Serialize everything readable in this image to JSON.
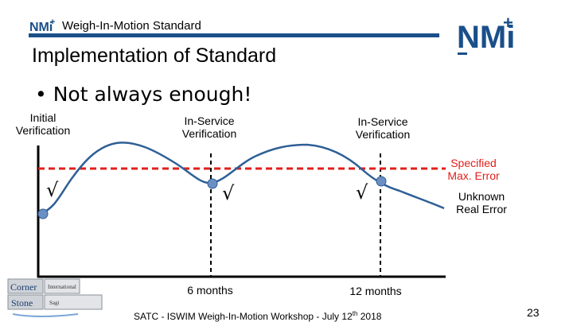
{
  "header": {
    "title": "Weigh-In-Motion Standard",
    "logo_text": "NMi",
    "logo_plus": "+"
  },
  "slide": {
    "subtitle": "Implementation of Standard",
    "bullet": "• Not always enough!"
  },
  "labels": {
    "initial_verification": "Initial\nVerification",
    "in_service_1": "In-Service\nVerification",
    "in_service_2": "In-Service\nVerification",
    "specified_max_error": "Specified\nMax. Error",
    "unknown_real_error": "Unknown\nReal Error",
    "six_months": "6 months",
    "twelve_months": "12 months",
    "check_mark": "√"
  },
  "footer": {
    "text_before": "SATC - ISWIM Weigh-In-Motion Workshop - July 12",
    "superscript": "th",
    "text_after": " 2018",
    "page_number": "23"
  },
  "corner_logo": {
    "word1": "Corner",
    "word2": "Stone",
    "tag1": "International",
    "tag2": "Sagi"
  },
  "colors": {
    "brand_blue": "#1a4f8a",
    "error_red": "#e0201b",
    "curve_blue": "#2e5f95",
    "point_blue": "#6b8fc4"
  }
}
